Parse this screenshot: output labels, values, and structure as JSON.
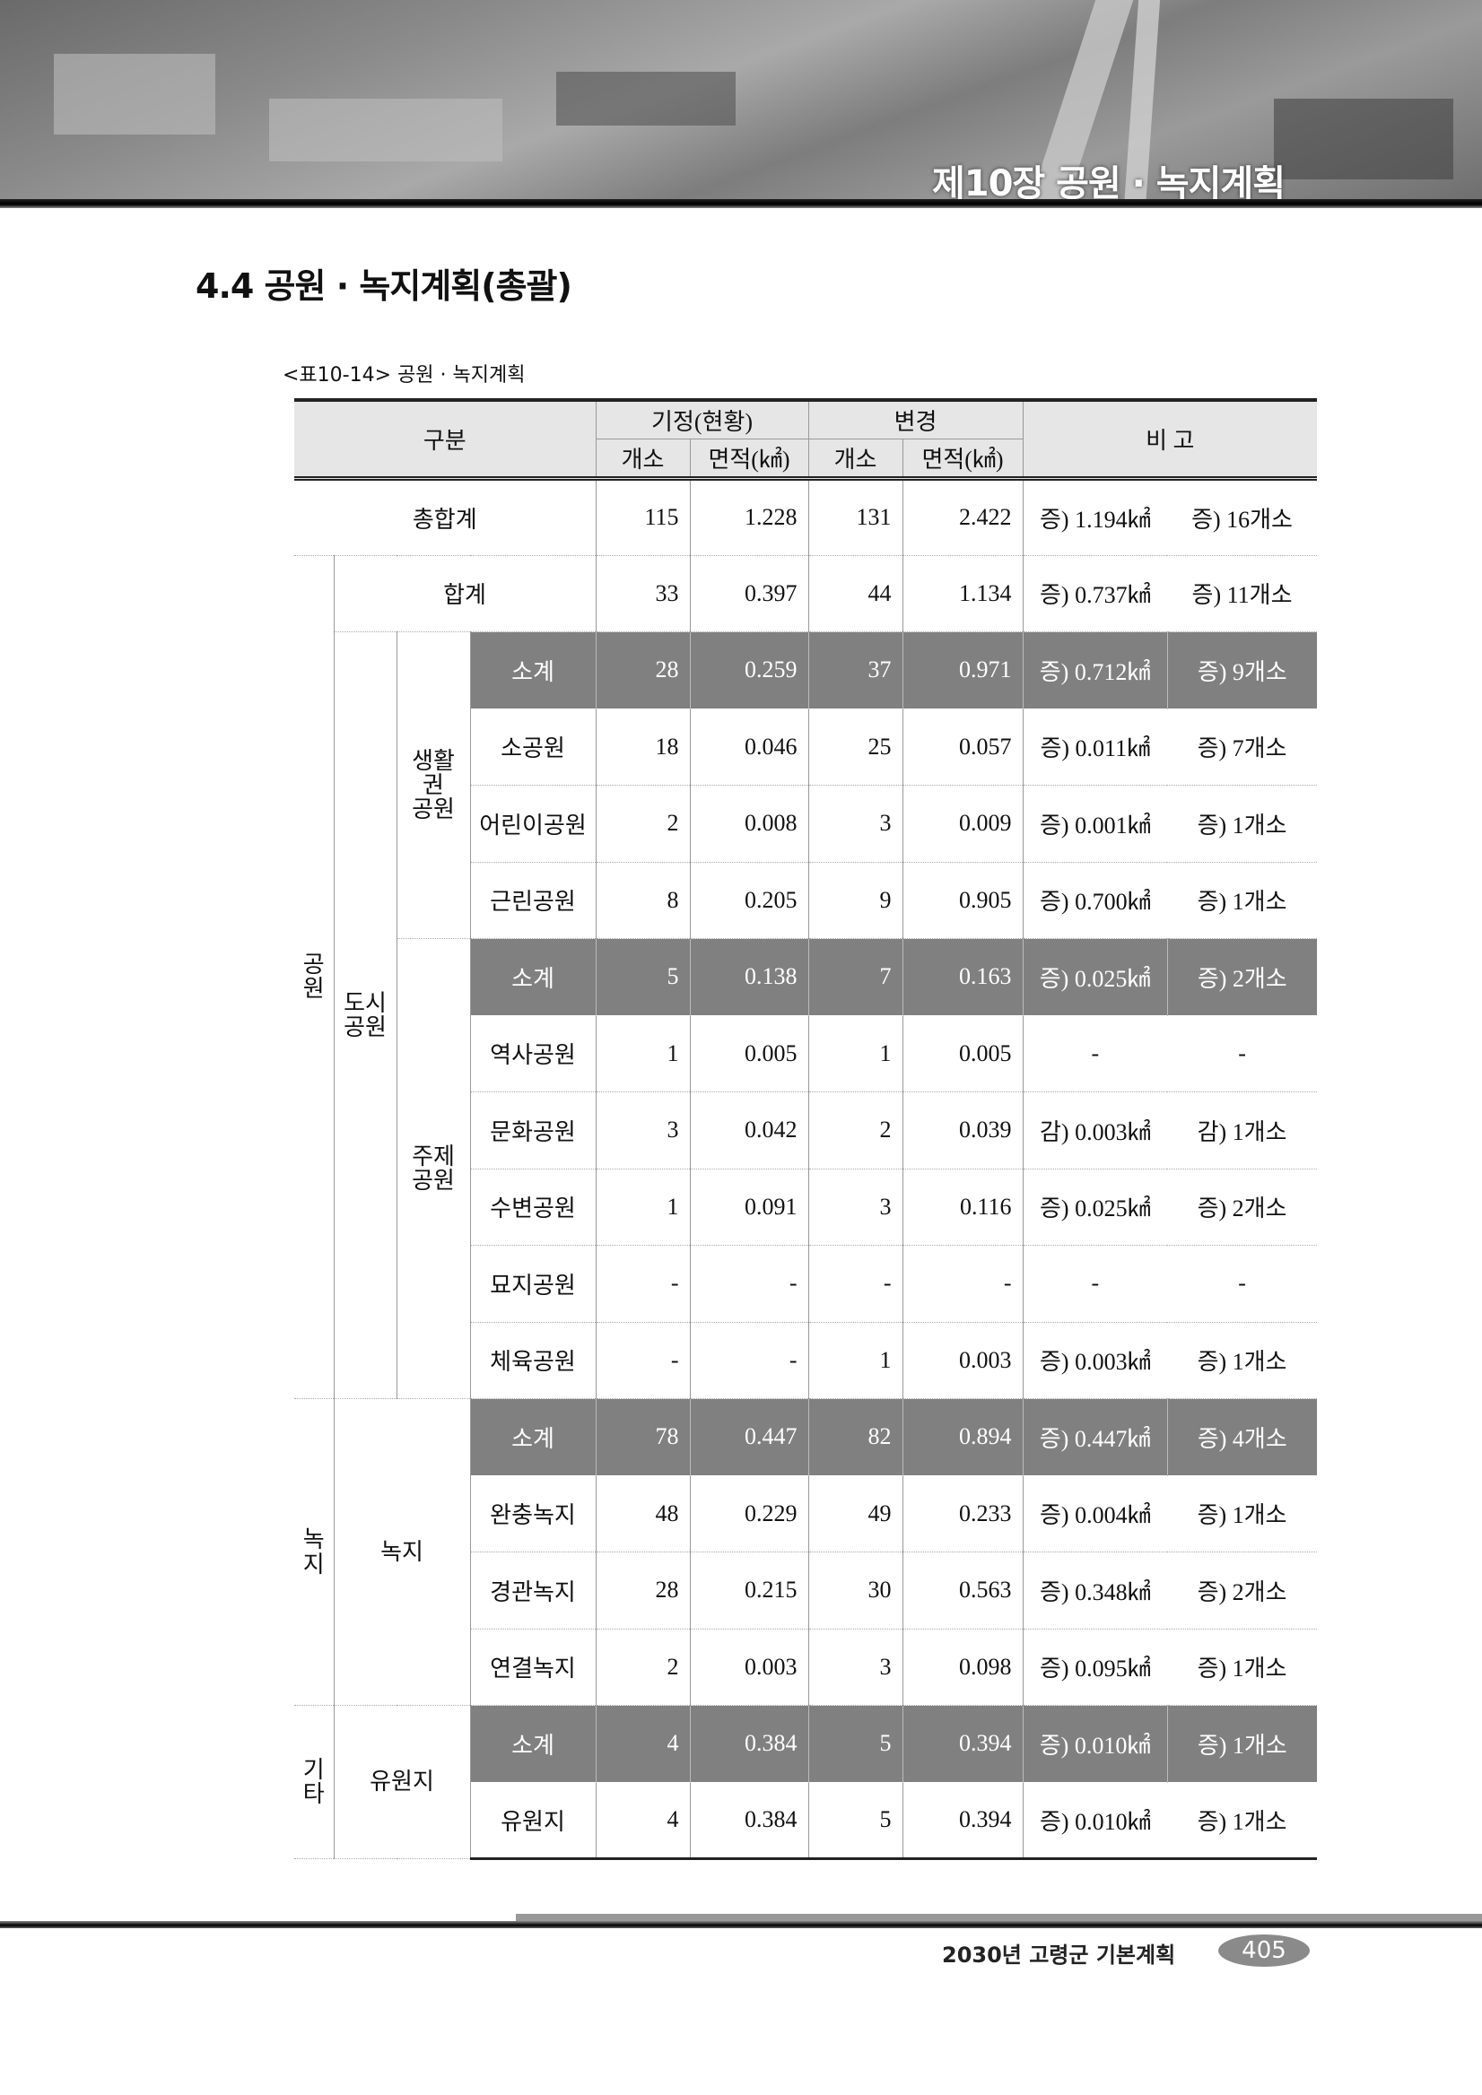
{
  "header": {
    "chapter": "제10장 공원 · 녹지계획"
  },
  "section_title": "4.4 공원 · 녹지계획(총괄)",
  "table_caption": "<표10-14> 공원 · 녹지계획",
  "table": {
    "headers": {
      "category": "구분",
      "existing": "기정(현황)",
      "changed": "변경",
      "remarks": "비 고",
      "count": "개소",
      "area": "면적(㎢)"
    },
    "groups": {
      "park": "공\n원",
      "urban_park": "도시\n공원",
      "living_park": "생활\n권\n공원",
      "theme_park": "주제\n공원",
      "green": "녹\n지",
      "green_sub": "녹지",
      "other": "기\n타",
      "other_sub": "유원지"
    },
    "rows": [
      {
        "label": "총합계",
        "c1": "115",
        "a1": "1.228",
        "c2": "131",
        "a2": "2.422",
        "r1": "증) 1.194㎢",
        "r2": "증) 16개소"
      },
      {
        "label": "합계",
        "c1": "33",
        "a1": "0.397",
        "c2": "44",
        "a2": "1.134",
        "r1": "증) 0.737㎢",
        "r2": "증) 11개소"
      },
      {
        "label": "소계",
        "c1": "28",
        "a1": "0.259",
        "c2": "37",
        "a2": "0.971",
        "r1": "증) 0.712㎢",
        "r2": "증) 9개소"
      },
      {
        "label": "소공원",
        "c1": "18",
        "a1": "0.046",
        "c2": "25",
        "a2": "0.057",
        "r1": "증) 0.011㎢",
        "r2": "증) 7개소"
      },
      {
        "label": "어린이공원",
        "c1": "2",
        "a1": "0.008",
        "c2": "3",
        "a2": "0.009",
        "r1": "증) 0.001㎢",
        "r2": "증) 1개소"
      },
      {
        "label": "근린공원",
        "c1": "8",
        "a1": "0.205",
        "c2": "9",
        "a2": "0.905",
        "r1": "증) 0.700㎢",
        "r2": "증) 1개소"
      },
      {
        "label": "소계",
        "c1": "5",
        "a1": "0.138",
        "c2": "7",
        "a2": "0.163",
        "r1": "증) 0.025㎢",
        "r2": "증) 2개소"
      },
      {
        "label": "역사공원",
        "c1": "1",
        "a1": "0.005",
        "c2": "1",
        "a2": "0.005",
        "r1": "-",
        "r2": "-"
      },
      {
        "label": "문화공원",
        "c1": "3",
        "a1": "0.042",
        "c2": "2",
        "a2": "0.039",
        "r1": "감) 0.003㎢",
        "r2": "감) 1개소"
      },
      {
        "label": "수변공원",
        "c1": "1",
        "a1": "0.091",
        "c2": "3",
        "a2": "0.116",
        "r1": "증) 0.025㎢",
        "r2": "증) 2개소"
      },
      {
        "label": "묘지공원",
        "c1": "-",
        "a1": "-",
        "c2": "-",
        "a2": "-",
        "r1": "-",
        "r2": "-"
      },
      {
        "label": "체육공원",
        "c1": "-",
        "a1": "-",
        "c2": "1",
        "a2": "0.003",
        "r1": "증) 0.003㎢",
        "r2": "증) 1개소"
      },
      {
        "label": "소계",
        "c1": "78",
        "a1": "0.447",
        "c2": "82",
        "a2": "0.894",
        "r1": "증) 0.447㎢",
        "r2": "증) 4개소"
      },
      {
        "label": "완충녹지",
        "c1": "48",
        "a1": "0.229",
        "c2": "49",
        "a2": "0.233",
        "r1": "증) 0.004㎢",
        "r2": "증) 1개소"
      },
      {
        "label": "경관녹지",
        "c1": "28",
        "a1": "0.215",
        "c2": "30",
        "a2": "0.563",
        "r1": "증) 0.348㎢",
        "r2": "증) 2개소"
      },
      {
        "label": "연결녹지",
        "c1": "2",
        "a1": "0.003",
        "c2": "3",
        "a2": "0.098",
        "r1": "증) 0.095㎢",
        "r2": "증) 1개소"
      },
      {
        "label": "소계",
        "c1": "4",
        "a1": "0.384",
        "c2": "5",
        "a2": "0.394",
        "r1": "증) 0.010㎢",
        "r2": "증) 1개소"
      },
      {
        "label": "유원지",
        "c1": "4",
        "a1": "0.384",
        "c2": "5",
        "a2": "0.394",
        "r1": "증) 0.010㎢",
        "r2": "증) 1개소"
      }
    ]
  },
  "footer": {
    "book_title": "2030년 고령군 기본계획",
    "page_number": "405"
  },
  "colors": {
    "subtotal_bg": "#808080",
    "header_bg": "#e6e6e6"
  }
}
